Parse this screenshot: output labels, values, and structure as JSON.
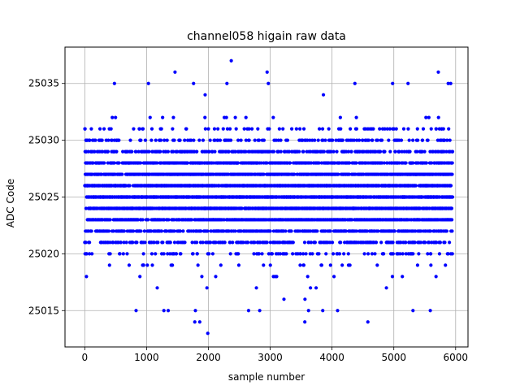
{
  "chart_data": {
    "type": "scatter",
    "title": "channel058 higain raw data",
    "xlabel": "sample number",
    "ylabel": "ADC Code",
    "xlim": [
      -320,
      6200
    ],
    "ylim": [
      25011.8,
      25038.2
    ],
    "xticks": [
      0,
      1000,
      2000,
      3000,
      4000,
      5000,
      6000
    ],
    "yticks": [
      25015,
      25020,
      25025,
      25030,
      25035
    ],
    "grid": true,
    "marker_color": "#0000ff",
    "point_count": 5950,
    "x_range": [
      0,
      5950
    ],
    "core_band": {
      "y_min": 25019,
      "y_max": 25030,
      "note_density": "dense continuous band of integer ADC codes"
    },
    "series": [
      {
        "values_sample": "integer ADC codes centered near 25025",
        "outliers": [
          {
            "x": 1990,
            "y": 25013
          },
          {
            "x": 1780,
            "y": 25014
          },
          {
            "x": 1860,
            "y": 25014
          },
          {
            "x": 3560,
            "y": 25014
          },
          {
            "x": 4580,
            "y": 25014
          },
          {
            "x": 830,
            "y": 25015
          },
          {
            "x": 1280,
            "y": 25015
          },
          {
            "x": 1350,
            "y": 25015
          },
          {
            "x": 1790,
            "y": 25015
          },
          {
            "x": 2650,
            "y": 25015
          },
          {
            "x": 2830,
            "y": 25015
          },
          {
            "x": 3620,
            "y": 25015
          },
          {
            "x": 3850,
            "y": 25015
          },
          {
            "x": 4090,
            "y": 25015
          },
          {
            "x": 5310,
            "y": 25015
          },
          {
            "x": 5590,
            "y": 25015
          },
          {
            "x": 2370,
            "y": 25037
          },
          {
            "x": 1460,
            "y": 25036
          },
          {
            "x": 2950,
            "y": 25036
          },
          {
            "x": 5720,
            "y": 25036
          },
          {
            "x": 480,
            "y": 25035
          },
          {
            "x": 1030,
            "y": 25035
          },
          {
            "x": 1760,
            "y": 25035
          },
          {
            "x": 2300,
            "y": 25035
          },
          {
            "x": 2970,
            "y": 25035
          },
          {
            "x": 4370,
            "y": 25035
          },
          {
            "x": 4980,
            "y": 25035
          },
          {
            "x": 5230,
            "y": 25035
          },
          {
            "x": 5880,
            "y": 25035
          },
          {
            "x": 5920,
            "y": 25035
          }
        ]
      }
    ]
  }
}
